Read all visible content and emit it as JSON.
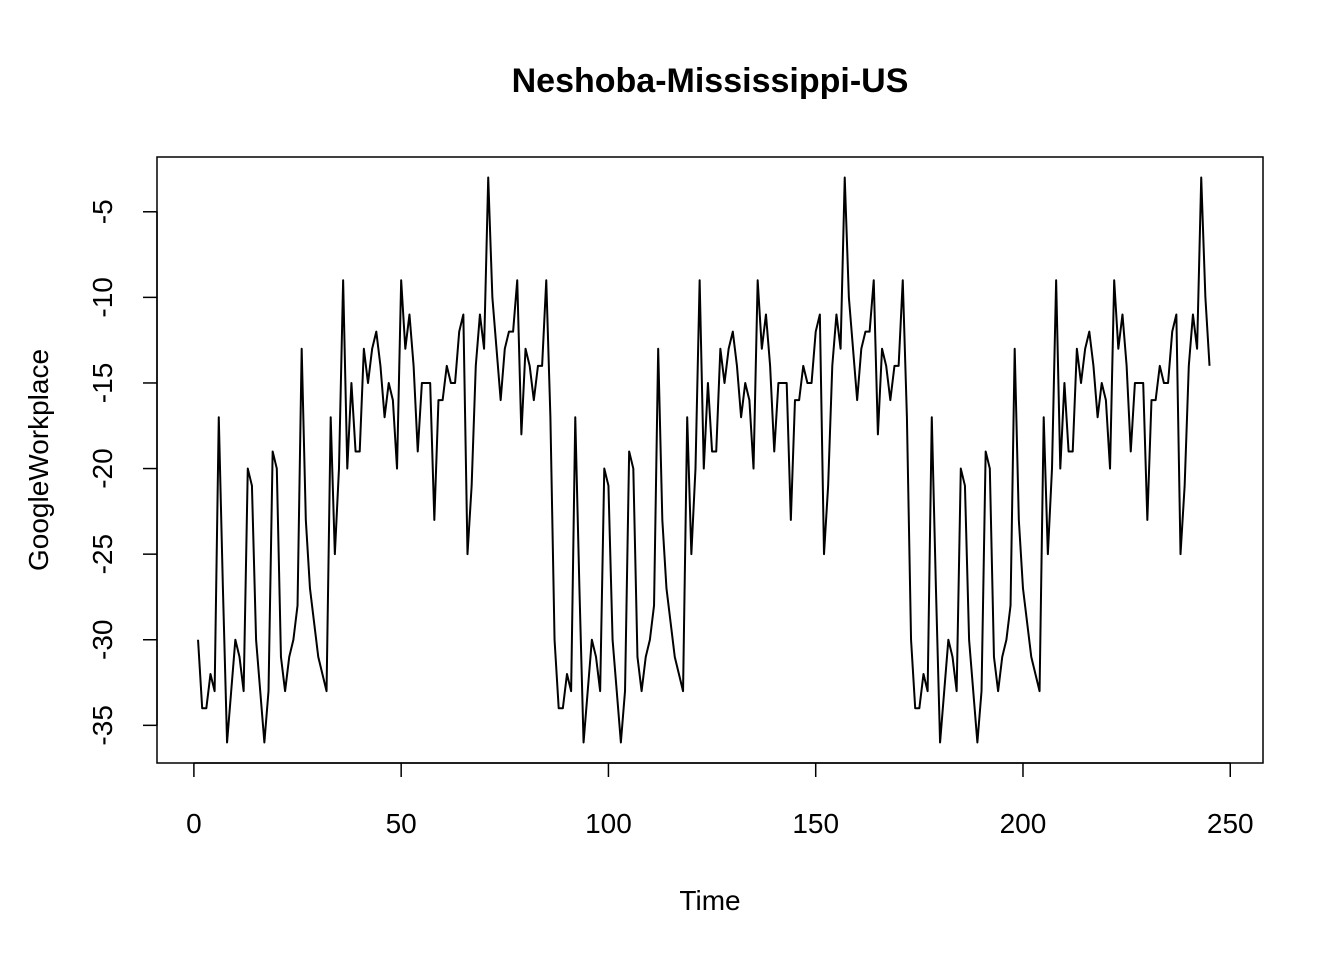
{
  "chart_data": {
    "type": "line",
    "title": "Neshoba-Mississippi-US",
    "xlabel": "Time",
    "ylabel": "GoogleWorkplace",
    "xlim": [
      -8.9,
      257.9
    ],
    "ylim": [
      -37.2,
      -1.8
    ],
    "x_ticks": [
      0,
      50,
      100,
      150,
      200,
      250
    ],
    "x_tick_labels": [
      "0",
      "50",
      "100",
      "150",
      "200",
      "250"
    ],
    "y_ticks": [
      -35,
      -30,
      -25,
      -20,
      -15,
      -10,
      -5
    ],
    "y_tick_labels": [
      "-35",
      "-30",
      "-25",
      "-20",
      "-15",
      "-10",
      "-5"
    ],
    "grid": false,
    "line_color": "#000000",
    "series": [
      {
        "x_start": 1,
        "values": [
          -30,
          -34,
          -34,
          -32,
          -33,
          -17,
          -27,
          -36,
          -33,
          -30,
          -31,
          -33,
          -20,
          -21,
          -30,
          -33,
          -36,
          -33,
          -19,
          -20,
          -31,
          -33,
          -31,
          -30,
          -28,
          -13,
          -23,
          -27,
          -29,
          -31,
          -32,
          -33,
          -17,
          -25,
          -20,
          -9,
          -20,
          -15,
          -19,
          -19,
          -13,
          -15,
          -13,
          -12,
          -14,
          -17,
          -15,
          -16,
          -20,
          -9,
          -13,
          -11,
          -14,
          -19,
          -15,
          -15,
          -15,
          -23,
          -16,
          -16,
          -14,
          -15,
          -15,
          -12,
          -11,
          -25,
          -21,
          -14,
          -11,
          -13,
          -3,
          -10,
          -13,
          -16,
          -13,
          -12,
          -12,
          -9,
          -18,
          -13,
          -14,
          -16,
          -14,
          -14,
          -9,
          -17,
          -30,
          -34,
          -34,
          -32,
          -33,
          -17,
          -27,
          -36,
          -33,
          -30,
          -31,
          -33,
          -20,
          -21,
          -30,
          -33,
          -36,
          -33,
          -19,
          -20,
          -31,
          -33,
          -31,
          -30,
          -28,
          -13,
          -23,
          -27,
          -29,
          -31,
          -32,
          -33,
          -17,
          -25,
          -20,
          -9,
          -20,
          -15,
          -19,
          -19,
          -13,
          -15,
          -13,
          -12,
          -14,
          -17,
          -15,
          -16,
          -20,
          -9,
          -13,
          -11,
          -14,
          -19,
          -15,
          -15,
          -15,
          -23,
          -16,
          -16,
          -14,
          -15,
          -15,
          -12,
          -11,
          -25,
          -21,
          -14,
          -11,
          -13,
          -3,
          -10,
          -13,
          -16,
          -13,
          -12,
          -12,
          -9,
          -18,
          -13,
          -14,
          -16,
          -14,
          -14,
          -9,
          -17,
          -30,
          -34,
          -34,
          -32,
          -33,
          -17,
          -27,
          -36,
          -33,
          -30,
          -31,
          -33,
          -20,
          -21,
          -30,
          -33,
          -36,
          -33,
          -19,
          -20,
          -31,
          -33,
          -31,
          -30,
          -28,
          -13,
          -23,
          -27,
          -29,
          -31,
          -32,
          -33,
          -17,
          -25,
          -20,
          -9,
          -20,
          -15,
          -19,
          -19,
          -13,
          -15,
          -13,
          -12,
          -14,
          -17,
          -15,
          -16,
          -20,
          -9,
          -13,
          -11,
          -14,
          -19,
          -15,
          -15,
          -15,
          -23,
          -16,
          -16,
          -14,
          -15,
          -15,
          -12,
          -11,
          -25,
          -21,
          -14,
          -11,
          -13,
          -3,
          -10,
          -14
        ]
      }
    ]
  }
}
